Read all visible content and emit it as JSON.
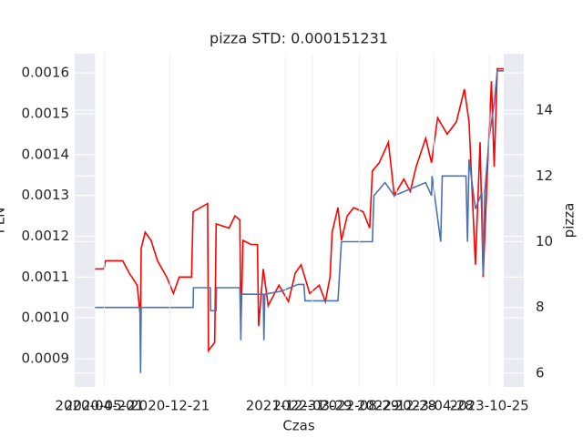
{
  "chart_data": {
    "type": "line",
    "title": "pizza STD: 0.000151231",
    "xlabel": "Czas",
    "ylabel": "PLN",
    "y2label": "pizza",
    "xlim": [
      "2020-04-20",
      "2023-12-11"
    ],
    "xticks": [
      "2020-04-20",
      "2020-05-21",
      "2020-12-21",
      "2021-12-31",
      "2022-03-29",
      "2022-08-29",
      "2022-12-28",
      "2023-04-28",
      "2023-10-25"
    ],
    "ylim": [
      0.000831,
      0.001647
    ],
    "yticks": [
      0.0009,
      {
        "value": 0.001,
        "label": "0.0010"
      },
      0.0011,
      0.0012,
      0.0013,
      0.0014,
      0.0015,
      0.0016
    ],
    "y2lim": [
      5.58,
      15.72
    ],
    "y2ticks": [
      6,
      8,
      10,
      12,
      14
    ],
    "grid": true,
    "series": [
      {
        "color": "#ff0000",
        "x": [
          "2020-04-20",
          "2020-05-20",
          "2020-05-25",
          "2020-07-20",
          "2020-08-10",
          "2020-09-05",
          "2020-09-16",
          "2020-09-18",
          "2020-10-01",
          "2020-10-20",
          "2020-11-10",
          "2020-12-10",
          "2021-01-01",
          "2021-01-20",
          "2021-03-01",
          "2021-03-06",
          "2021-04-22",
          "2021-04-25",
          "2021-05-15",
          "2021-05-20",
          "2021-07-01",
          "2021-07-20",
          "2021-08-05",
          "2021-08-08",
          "2021-08-15",
          "2021-09-10",
          "2021-10-01",
          "2021-10-05",
          "2021-10-20",
          "2021-11-05",
          "2021-12-10",
          "2022-01-10",
          "2022-02-01",
          "2022-02-20",
          "2022-03-20",
          "2022-04-20",
          "2022-05-10",
          "2022-05-25",
          "2022-06-01",
          "2022-06-20",
          "2022-07-01",
          "2022-07-20",
          "2022-08-10",
          "2022-09-10",
          "2022-10-01",
          "2022-10-10",
          "2022-11-01",
          "2022-12-01",
          "2022-12-20",
          "2023-01-20",
          "2023-02-10",
          "2023-03-01",
          "2023-04-01",
          "2023-04-20",
          "2023-05-10",
          "2023-06-10",
          "2023-07-10",
          "2023-08-05",
          "2023-08-20",
          "2023-09-10",
          "2023-09-25",
          "2023-10-05",
          "2023-10-20",
          "2023-11-01",
          "2023-11-10",
          "2023-11-20",
          "2023-12-11"
        ],
        "values": [
          0.00112,
          0.00112,
          0.00114,
          0.00114,
          0.00111,
          0.00108,
          0.001,
          0.00117,
          0.00121,
          0.00119,
          0.00114,
          0.0011,
          0.00106,
          0.0011,
          0.0011,
          0.00126,
          0.00128,
          0.00092,
          0.00094,
          0.00123,
          0.00122,
          0.00125,
          0.00124,
          0.00097,
          0.00119,
          0.00118,
          0.00118,
          0.00098,
          0.00112,
          0.00103,
          0.00108,
          0.00104,
          0.00111,
          0.00113,
          0.00106,
          0.00108,
          0.00104,
          0.0011,
          0.00121,
          0.00127,
          0.00119,
          0.00125,
          0.00127,
          0.00126,
          0.00122,
          0.00136,
          0.00138,
          0.00143,
          0.0013,
          0.00134,
          0.00131,
          0.00137,
          0.00144,
          0.00138,
          0.00149,
          0.00145,
          0.00148,
          0.00156,
          0.00148,
          0.00113,
          0.00143,
          0.0011,
          0.00138,
          0.00158,
          0.00137,
          0.00161,
          0.00161
        ]
      },
      {
        "color": "#4c72b0",
        "axis": "y2",
        "x": [
          "2020-04-20",
          "2020-09-14",
          "2020-09-16",
          "2020-09-18",
          "2021-03-06",
          "2021-03-07",
          "2021-05-01",
          "2021-05-02",
          "2021-05-20",
          "2021-05-21",
          "2021-08-05",
          "2021-08-08",
          "2021-08-09",
          "2021-10-20",
          "2021-10-22",
          "2021-10-25",
          "2021-12-20",
          "2022-02-10",
          "2022-03-01",
          "2022-03-05",
          "2022-06-20",
          "2022-07-01",
          "2022-10-10",
          "2022-10-15",
          "2022-11-20",
          "2022-12-20",
          "2023-04-01",
          "2023-04-20",
          "2023-04-22",
          "2023-05-20",
          "2023-05-25",
          "2023-08-10",
          "2023-08-15",
          "2023-08-20",
          "2023-09-10",
          "2023-10-01",
          "2023-10-05",
          "2023-10-10",
          "2023-10-25",
          "2023-11-10",
          "2023-11-20",
          "2023-12-11"
        ],
        "values": [
          8,
          8,
          6.0,
          8,
          8,
          8.6,
          8.6,
          7.9,
          7.9,
          8.6,
          8.6,
          7.0,
          8.4,
          8.4,
          7.0,
          8.4,
          8.5,
          8.7,
          8.7,
          8.2,
          8.2,
          10,
          10,
          11.4,
          11.8,
          11.4,
          11.8,
          11.4,
          12,
          10,
          12,
          12,
          10,
          12.5,
          11,
          11.5,
          9,
          11.5,
          13.2,
          14.2,
          15.2,
          15.2
        ]
      }
    ]
  }
}
